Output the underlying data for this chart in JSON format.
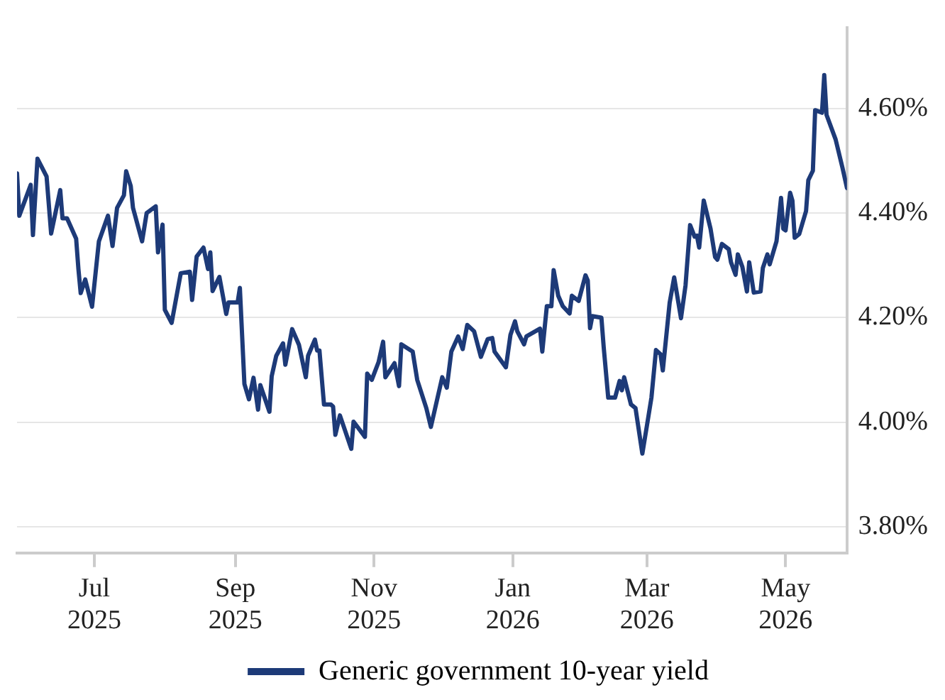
{
  "chart_data": {
    "type": "line",
    "grid": "y",
    "legend": "bottom",
    "marker": "none",
    "line_style": "solid",
    "xlim": [
      "2025-05-28",
      "2026-05-28"
    ],
    "xticks": [
      {
        "value": "2025-07-01",
        "label": "Jul 2025"
      },
      {
        "value": "2025-09-01",
        "label": "Sep 2025"
      },
      {
        "value": "2025-11-01",
        "label": "Nov 2025"
      },
      {
        "value": "2026-01-01",
        "label": "Jan 2026"
      },
      {
        "value": "2026-03-01",
        "label": "Mar 2026"
      },
      {
        "value": "2026-05-01",
        "label": "May 2026"
      }
    ],
    "ylim": [
      3.75,
      4.755
    ],
    "yticks": [
      {
        "value": 3.8,
        "label": "3.80%"
      },
      {
        "value": 4.0,
        "label": "4.00%"
      },
      {
        "value": 4.2,
        "label": "4.20%"
      },
      {
        "value": 4.4,
        "label": "4.40%"
      },
      {
        "value": 4.6,
        "label": "4.60%"
      }
    ],
    "x": [
      "2025-05-28",
      "2025-05-29",
      "2025-06-03",
      "2025-06-04",
      "2025-06-06",
      "2025-06-10",
      "2025-06-12",
      "2025-06-16",
      "2025-06-17",
      "2025-06-19",
      "2025-06-23",
      "2025-06-24",
      "2025-06-25",
      "2025-06-27",
      "2025-06-30",
      "2025-07-03",
      "2025-07-07",
      "2025-07-09",
      "2025-07-11",
      "2025-07-14",
      "2025-07-15",
      "2025-07-17",
      "2025-07-18",
      "2025-07-22",
      "2025-07-24",
      "2025-07-28",
      "2025-07-29",
      "2025-07-31",
      "2025-08-01",
      "2025-08-04",
      "2025-08-08",
      "2025-08-12",
      "2025-08-13",
      "2025-08-15",
      "2025-08-18",
      "2025-08-20",
      "2025-08-21",
      "2025-08-22",
      "2025-08-25",
      "2025-08-28",
      "2025-08-29",
      "2025-09-02",
      "2025-09-03",
      "2025-09-05",
      "2025-09-07",
      "2025-09-09",
      "2025-09-11",
      "2025-09-12",
      "2025-09-16",
      "2025-09-17",
      "2025-09-19",
      "2025-09-22",
      "2025-09-23",
      "2025-09-26",
      "2025-09-29",
      "2025-10-02",
      "2025-10-03",
      "2025-10-06",
      "2025-10-07",
      "2025-10-08",
      "2025-10-10",
      "2025-10-13",
      "2025-10-14",
      "2025-10-15",
      "2025-10-17",
      "2025-10-22",
      "2025-10-23",
      "2025-10-28",
      "2025-10-29",
      "2025-10-31",
      "2025-11-03",
      "2025-11-05",
      "2025-11-06",
      "2025-11-10",
      "2025-11-12",
      "2025-11-13",
      "2025-11-18",
      "2025-11-20",
      "2025-11-24",
      "2025-11-26",
      "2025-12-01",
      "2025-12-03",
      "2025-12-05",
      "2025-12-08",
      "2025-12-10",
      "2025-12-12",
      "2025-12-15",
      "2025-12-18",
      "2025-12-21",
      "2025-12-23",
      "2025-12-24",
      "2025-12-29",
      "2025-12-31",
      "2026-01-02",
      "2026-01-03",
      "2026-01-06",
      "2026-01-07",
      "2026-01-13",
      "2026-01-14",
      "2026-01-16",
      "2026-01-18",
      "2026-01-19",
      "2026-01-21",
      "2026-01-23",
      "2026-01-26",
      "2026-01-27",
      "2026-01-30",
      "2026-02-02",
      "2026-02-03",
      "2026-02-04",
      "2026-02-05",
      "2026-02-09",
      "2026-02-10",
      "2026-02-12",
      "2026-02-15",
      "2026-02-17",
      "2026-02-18",
      "2026-02-19",
      "2026-02-22",
      "2026-02-24",
      "2026-02-27",
      "2026-03-01",
      "2026-03-03",
      "2026-03-05",
      "2026-03-07",
      "2026-03-08",
      "2026-03-11",
      "2026-03-13",
      "2026-03-16",
      "2026-03-18",
      "2026-03-20",
      "2026-03-22",
      "2026-03-23",
      "2026-03-24",
      "2026-03-26",
      "2026-03-29",
      "2026-03-31",
      "2026-04-01",
      "2026-04-03",
      "2026-04-06",
      "2026-04-07",
      "2026-04-09",
      "2026-04-10",
      "2026-04-12",
      "2026-04-14",
      "2026-04-15",
      "2026-04-17",
      "2026-04-20",
      "2026-04-21",
      "2026-04-23",
      "2026-04-24",
      "2026-04-27",
      "2026-04-29",
      "2026-04-30",
      "2026-05-01",
      "2026-05-03",
      "2026-05-04",
      "2026-05-05",
      "2026-05-07",
      "2026-05-10",
      "2026-05-11",
      "2026-05-13",
      "2026-05-14",
      "2026-05-17",
      "2026-05-18",
      "2026-05-19",
      "2026-05-23",
      "2026-05-26",
      "2026-05-28"
    ],
    "series": [
      {
        "name": "Generic government 10-year yield",
        "color": "#1d3a78",
        "values": [
          4.476,
          4.395,
          4.454,
          4.358,
          4.504,
          4.47,
          4.361,
          4.444,
          4.39,
          4.39,
          4.351,
          4.293,
          4.247,
          4.273,
          4.221,
          4.346,
          4.395,
          4.337,
          4.41,
          4.434,
          4.48,
          4.452,
          4.41,
          4.346,
          4.4,
          4.413,
          4.325,
          4.378,
          4.215,
          4.19,
          4.285,
          4.288,
          4.234,
          4.317,
          4.334,
          4.293,
          4.325,
          4.251,
          4.278,
          4.207,
          4.229,
          4.229,
          4.257,
          4.073,
          4.044,
          4.085,
          4.024,
          4.071,
          4.02,
          4.088,
          4.127,
          4.151,
          4.11,
          4.178,
          4.148,
          4.086,
          4.127,
          4.158,
          4.137,
          4.137,
          4.034,
          4.034,
          4.03,
          3.976,
          4.013,
          3.949,
          4.001,
          3.972,
          4.093,
          4.081,
          4.115,
          4.154,
          4.086,
          4.113,
          4.069,
          4.149,
          4.135,
          4.081,
          4.027,
          3.991,
          4.086,
          4.066,
          4.135,
          4.164,
          4.14,
          4.186,
          4.174,
          4.125,
          4.159,
          4.161,
          4.135,
          4.105,
          4.167,
          4.193,
          4.174,
          4.149,
          4.164,
          4.179,
          4.135,
          4.222,
          4.222,
          4.291,
          4.242,
          4.222,
          4.208,
          4.242,
          4.232,
          4.281,
          4.271,
          4.18,
          4.203,
          4.2,
          4.144,
          4.047,
          4.047,
          4.079,
          4.061,
          4.086,
          4.034,
          4.027,
          3.94,
          3.993,
          4.047,
          4.138,
          4.13,
          4.099,
          4.228,
          4.277,
          4.199,
          4.262,
          4.377,
          4.355,
          4.357,
          4.334,
          4.424,
          4.37,
          4.316,
          4.311,
          4.341,
          4.331,
          4.306,
          4.282,
          4.321,
          4.297,
          4.25,
          4.306,
          4.248,
          4.25,
          4.295,
          4.321,
          4.302,
          4.346,
          4.429,
          4.37,
          4.367,
          4.439,
          4.424,
          4.353,
          4.36,
          4.404,
          4.463,
          4.481,
          4.597,
          4.592,
          4.664,
          4.588,
          4.541,
          4.487,
          4.448
        ]
      }
    ]
  }
}
